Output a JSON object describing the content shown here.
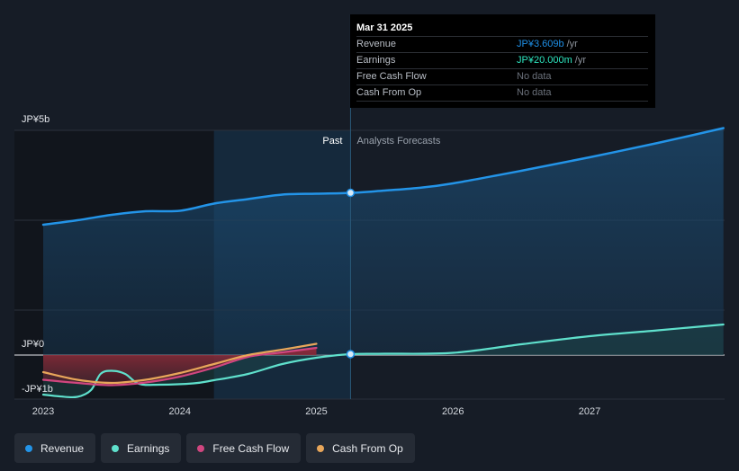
{
  "chart_data": {
    "type": "area",
    "currency_unit": "JP¥",
    "y_labels": [
      "JP¥5b",
      "JP¥0",
      "-JP¥1b"
    ],
    "x_ticks": [
      "2023",
      "2024",
      "2025",
      "2026",
      "2027"
    ],
    "ylim": [
      -1.0,
      5.0
    ],
    "xlim": [
      2022.82,
      2027.98
    ],
    "divider_x": 2025.25,
    "past_band_start": 2024.25,
    "zone_labels": {
      "past": "Past",
      "forecast": "Analysts Forecasts"
    },
    "series": [
      {
        "name": "Revenue",
        "color": "#2394e8",
        "fill": true,
        "points": [
          [
            2023.0,
            2.9
          ],
          [
            2023.25,
            3.0
          ],
          [
            2023.5,
            3.12
          ],
          [
            2023.75,
            3.2
          ],
          [
            2024.0,
            3.21
          ],
          [
            2024.25,
            3.37
          ],
          [
            2024.5,
            3.47
          ],
          [
            2024.75,
            3.57
          ],
          [
            2025.0,
            3.59
          ],
          [
            2025.25,
            3.609
          ],
          [
            2025.5,
            3.66
          ],
          [
            2025.75,
            3.72
          ],
          [
            2026.0,
            3.82
          ],
          [
            2026.5,
            4.1
          ],
          [
            2027.0,
            4.4
          ],
          [
            2027.5,
            4.72
          ],
          [
            2027.98,
            5.05
          ]
        ]
      },
      {
        "name": "Earnings",
        "color": "#5fe0cc",
        "fill": true,
        "points": [
          [
            2023.0,
            -0.88
          ],
          [
            2023.12,
            -0.92
          ],
          [
            2023.25,
            -0.93
          ],
          [
            2023.35,
            -0.78
          ],
          [
            2023.42,
            -0.42
          ],
          [
            2023.5,
            -0.35
          ],
          [
            2023.6,
            -0.42
          ],
          [
            2023.7,
            -0.64
          ],
          [
            2023.85,
            -0.66
          ],
          [
            2024.1,
            -0.63
          ],
          [
            2024.25,
            -0.56
          ],
          [
            2024.5,
            -0.42
          ],
          [
            2024.75,
            -0.2
          ],
          [
            2025.0,
            -0.06
          ],
          [
            2025.25,
            0.02
          ],
          [
            2025.5,
            0.03
          ],
          [
            2026.0,
            0.05
          ],
          [
            2026.5,
            0.24
          ],
          [
            2027.0,
            0.42
          ],
          [
            2027.5,
            0.55
          ],
          [
            2027.98,
            0.68
          ]
        ]
      },
      {
        "name": "Free Cash Flow",
        "color": "#d0467f",
        "fill": false,
        "points": [
          [
            2023.0,
            -0.55
          ],
          [
            2023.25,
            -0.62
          ],
          [
            2023.5,
            -0.67
          ],
          [
            2023.75,
            -0.61
          ],
          [
            2024.0,
            -0.48
          ],
          [
            2024.25,
            -0.28
          ],
          [
            2024.5,
            -0.04
          ],
          [
            2024.75,
            0.06
          ],
          [
            2025.0,
            0.16
          ]
        ]
      },
      {
        "name": "Cash From Op",
        "color": "#e8a65a",
        "fill": false,
        "points": [
          [
            2023.0,
            -0.38
          ],
          [
            2023.25,
            -0.55
          ],
          [
            2023.5,
            -0.62
          ],
          [
            2023.75,
            -0.55
          ],
          [
            2024.0,
            -0.4
          ],
          [
            2024.25,
            -0.2
          ],
          [
            2024.5,
            0.0
          ],
          [
            2024.75,
            0.12
          ],
          [
            2025.0,
            0.25
          ]
        ]
      }
    ],
    "highlight_points": [
      {
        "series": "Revenue",
        "x": 2025.25,
        "y": 3.609
      },
      {
        "series": "Earnings",
        "x": 2025.25,
        "y": 0.02
      }
    ]
  },
  "tooltip": {
    "date": "Mar 31 2025",
    "rows": [
      {
        "label": "Revenue",
        "value": "JP¥3.609b",
        "unit": "/yr",
        "color": "#1e8fe6"
      },
      {
        "label": "Earnings",
        "value": "JP¥20.000m",
        "unit": "/yr",
        "color": "#2ee6c0"
      },
      {
        "label": "Free Cash Flow",
        "value": "No data",
        "unit": "",
        "color": "#6a707a"
      },
      {
        "label": "Cash From Op",
        "value": "No data",
        "unit": "",
        "color": "#6a707a"
      }
    ]
  },
  "legend": [
    {
      "label": "Revenue",
      "color": "#2394e8"
    },
    {
      "label": "Earnings",
      "color": "#5fe0cc"
    },
    {
      "label": "Free Cash Flow",
      "color": "#d0467f"
    },
    {
      "label": "Cash From Op",
      "color": "#e8a65a"
    }
  ]
}
